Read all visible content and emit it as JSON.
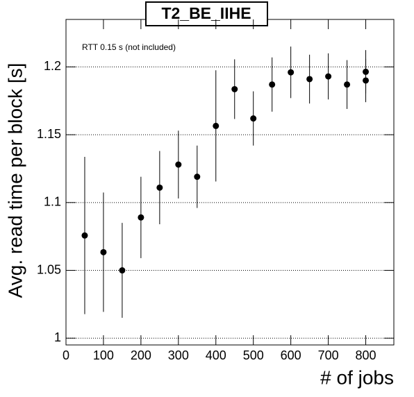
{
  "chart_data": {
    "type": "scatter",
    "title": "T2_BE_IIHE",
    "annotation": "RTT 0.15 s (not included)",
    "x_label": "# of jobs",
    "y_label": "Avg. read time per block [s]",
    "x": [
      50,
      100,
      150,
      200,
      250,
      300,
      350,
      400,
      450,
      500,
      550,
      600,
      650,
      700,
      750,
      800,
      800
    ],
    "values": [
      1.0757,
      1.0634,
      1.05,
      1.089,
      1.111,
      1.128,
      1.119,
      1.1565,
      1.1836,
      1.162,
      1.187,
      1.196,
      1.191,
      1.193,
      1.187,
      1.1964,
      1.19
    ],
    "errors": [
      0.058,
      0.044,
      0.035,
      0.03,
      0.027,
      0.025,
      0.023,
      0.041,
      0.022,
      0.02,
      0.02,
      0.019,
      0.018,
      0.017,
      0.018,
      0.016,
      0.016
    ],
    "color": "#000000",
    "xlim": [
      0,
      875
    ],
    "ylim": [
      0.995,
      1.235
    ],
    "xticks": [
      0,
      100,
      200,
      300,
      400,
      500,
      600,
      700,
      800
    ],
    "yticks": [
      1,
      1.05,
      1.1,
      1.15,
      1.2
    ],
    "grid": true
  }
}
